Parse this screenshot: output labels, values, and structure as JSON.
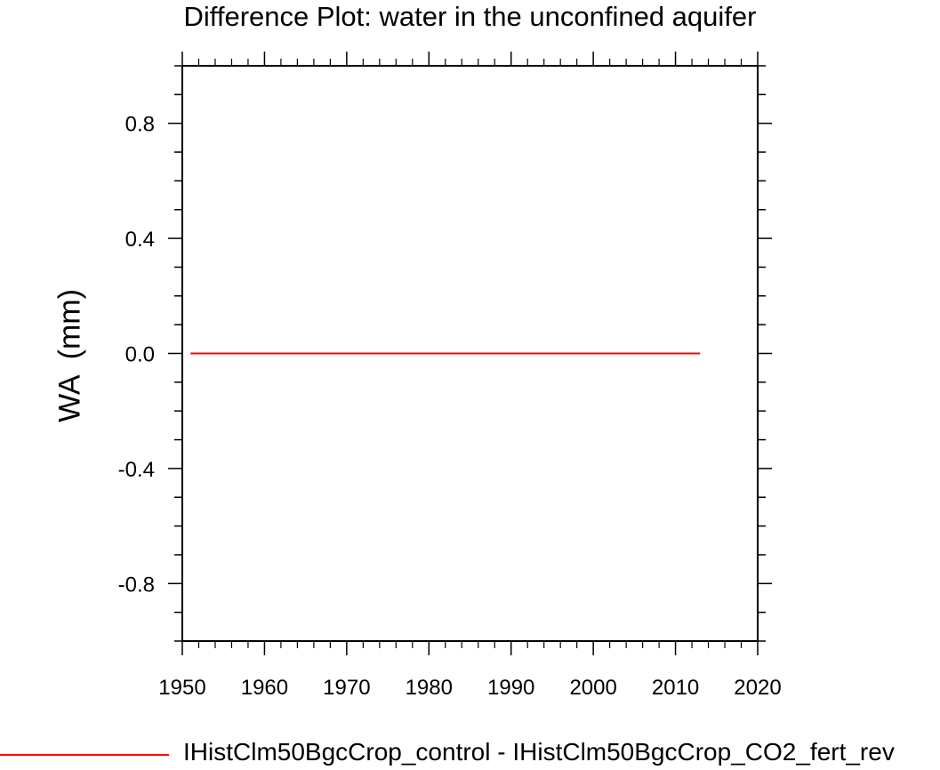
{
  "chart_data": {
    "type": "line",
    "title": "Difference Plot: water in the unconfined aquifer",
    "ylabel": "WA  (mm)",
    "xlabel": "",
    "xlim": [
      1950,
      2020
    ],
    "ylim": [
      -1.0,
      1.0
    ],
    "x_ticks": [
      1950,
      1960,
      1970,
      1980,
      1990,
      2000,
      2010,
      2020
    ],
    "y_ticks": [
      -0.8,
      -0.4,
      0.0,
      0.4,
      0.8
    ],
    "y_tick_labels": [
      "-0.8",
      "-0.4",
      "0.0",
      "0.4",
      "0.8"
    ],
    "grid": false,
    "legend_position": "bottom",
    "series": [
      {
        "name": "IHistClm50BgcCrop_control - IHistClm50BgcCrop_CO2_fert_rev",
        "color": "#ff0000",
        "x": [
          1951,
          1960,
          1970,
          1980,
          1990,
          2000,
          2010,
          2013
        ],
        "y": [
          0,
          0,
          0,
          0,
          0,
          0,
          0,
          0
        ]
      }
    ]
  }
}
